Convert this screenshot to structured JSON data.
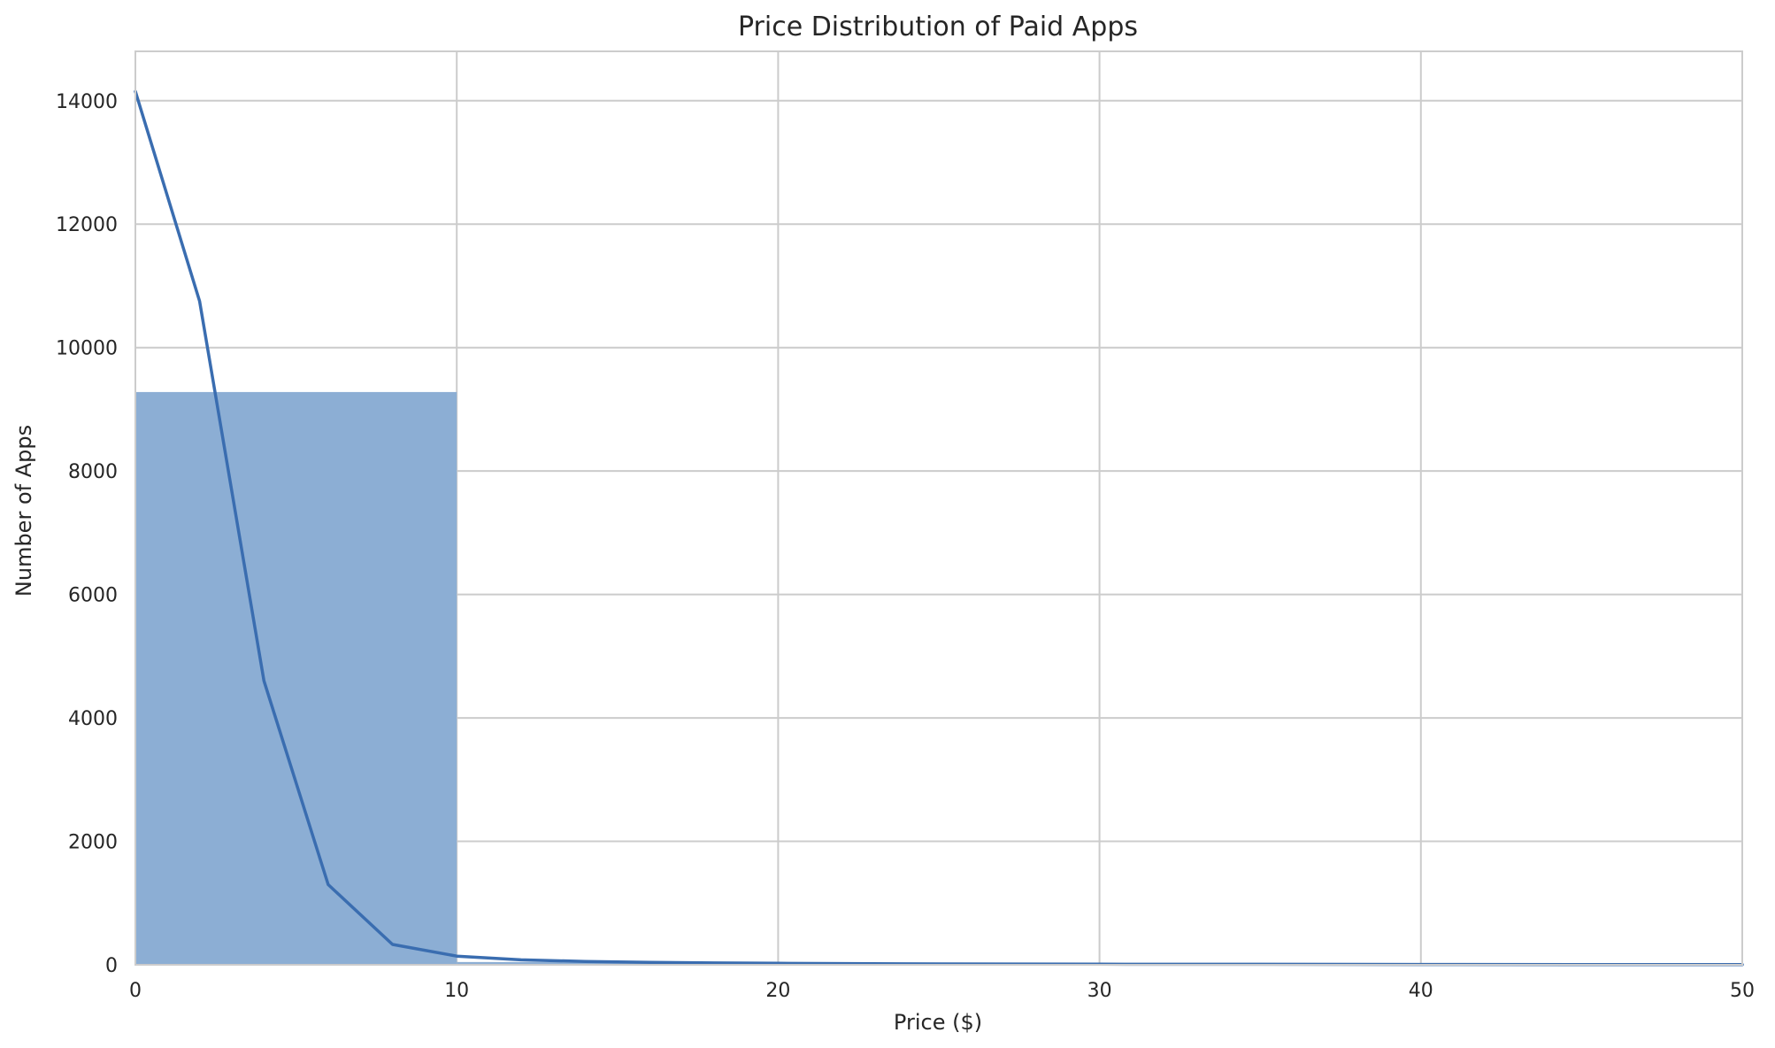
{
  "chart_data": {
    "type": "bar",
    "title": "Price Distribution of Paid Apps",
    "xlabel": "Price ($)",
    "ylabel": "Number of Apps",
    "xlim": [
      0,
      50
    ],
    "ylim": [
      0,
      14800
    ],
    "x_ticks": [
      "0",
      "10",
      "20",
      "30",
      "40",
      "50"
    ],
    "y_ticks": [
      "0",
      "2000",
      "4000",
      "6000",
      "8000",
      "10000",
      "12000",
      "14000"
    ],
    "grid": true,
    "bars": [
      {
        "x_start": 0,
        "x_end": 10,
        "value": 9280
      },
      {
        "x_start": 10,
        "x_end": 20,
        "value": 45
      },
      {
        "x_start": 20,
        "x_end": 30,
        "value": 15
      },
      {
        "x_start": 30,
        "x_end": 40,
        "value": 10
      },
      {
        "x_start": 40,
        "x_end": 50,
        "value": 8
      }
    ],
    "kde": {
      "x": [
        0,
        2,
        4,
        6,
        8,
        10,
        12,
        14,
        16,
        18,
        20,
        25,
        30,
        35,
        40,
        45,
        50
      ],
      "y": [
        14150,
        10750,
        4600,
        1300,
        330,
        140,
        80,
        55,
        40,
        30,
        25,
        15,
        10,
        8,
        6,
        5,
        4
      ]
    },
    "colors": {
      "bar": "#8caed4",
      "line": "#3a6db0"
    }
  }
}
